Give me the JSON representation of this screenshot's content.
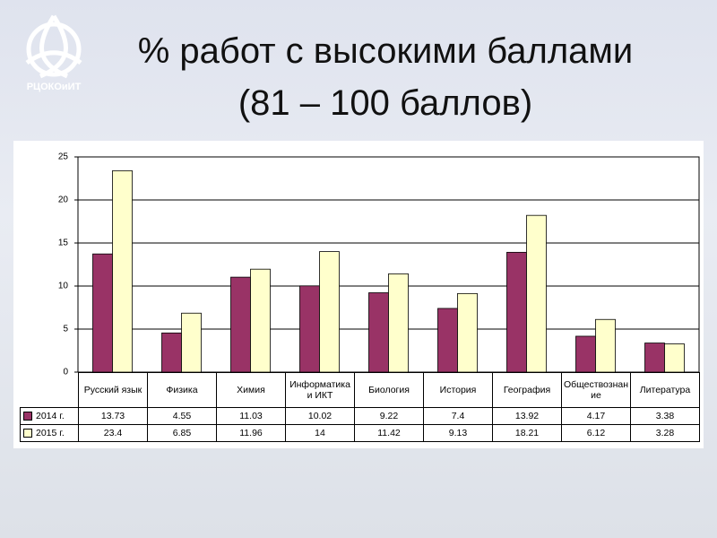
{
  "logo_text": "РЦОКОиИТ",
  "chart_data": {
    "type": "bar",
    "title": "% работ с высокими баллами",
    "subtitle": "(81 – 100 баллов)",
    "categories": [
      "Русский язык",
      "Физика",
      "Химия",
      "Информатика и ИКТ",
      "Биология",
      "История",
      "География",
      "Обществознание",
      "Литература"
    ],
    "series": [
      {
        "name": "2014 г.",
        "color": "#993366",
        "values": [
          13.73,
          4.55,
          11.03,
          10.02,
          9.22,
          7.4,
          13.92,
          4.17,
          3.38
        ]
      },
      {
        "name": "2015 г.",
        "color": "#ffffcc",
        "values": [
          23.4,
          6.85,
          11.96,
          14,
          11.42,
          9.13,
          18.21,
          6.12,
          3.28
        ]
      }
    ],
    "ylim": [
      0,
      25
    ],
    "yticks": [
      0,
      5,
      10,
      15,
      20,
      25
    ],
    "grid": true,
    "data_table": true
  }
}
